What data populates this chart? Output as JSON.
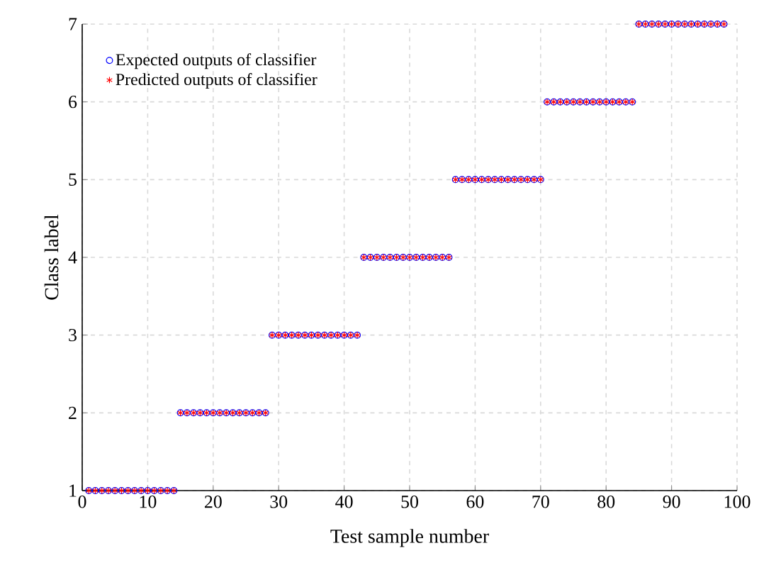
{
  "chart_data": {
    "type": "scatter",
    "xlabel": "Test sample number",
    "ylabel": "Class label",
    "x": [
      1,
      2,
      3,
      4,
      5,
      6,
      7,
      8,
      9,
      10,
      11,
      12,
      13,
      14,
      15,
      16,
      17,
      18,
      19,
      20,
      21,
      22,
      23,
      24,
      25,
      26,
      27,
      28,
      29,
      30,
      31,
      32,
      33,
      34,
      35,
      36,
      37,
      38,
      39,
      40,
      41,
      42,
      43,
      44,
      45,
      46,
      47,
      48,
      49,
      50,
      51,
      52,
      53,
      54,
      55,
      56,
      57,
      58,
      59,
      60,
      61,
      62,
      63,
      64,
      65,
      66,
      67,
      68,
      69,
      70,
      71,
      72,
      73,
      74,
      75,
      76,
      77,
      78,
      79,
      80,
      81,
      82,
      83,
      84,
      85,
      86,
      87,
      88,
      89,
      90,
      91,
      92,
      93,
      94,
      95,
      96,
      97,
      98
    ],
    "series": [
      {
        "name": "Expected outputs of classifier",
        "color": "#0000ff",
        "marker": "circle",
        "values": [
          1,
          1,
          1,
          1,
          1,
          1,
          1,
          1,
          1,
          1,
          1,
          1,
          1,
          1,
          2,
          2,
          2,
          2,
          2,
          2,
          2,
          2,
          2,
          2,
          2,
          2,
          2,
          2,
          3,
          3,
          3,
          3,
          3,
          3,
          3,
          3,
          3,
          3,
          3,
          3,
          3,
          3,
          4,
          4,
          4,
          4,
          4,
          4,
          4,
          4,
          4,
          4,
          4,
          4,
          4,
          4,
          5,
          5,
          5,
          5,
          5,
          5,
          5,
          5,
          5,
          5,
          5,
          5,
          5,
          5,
          6,
          6,
          6,
          6,
          6,
          6,
          6,
          6,
          6,
          6,
          6,
          6,
          6,
          6,
          7,
          7,
          7,
          7,
          7,
          7,
          7,
          7,
          7,
          7,
          7,
          7,
          7,
          7
        ]
      },
      {
        "name": "Predicted outputs of classifier",
        "color": "#ff0000",
        "marker": "cross",
        "values": [
          1,
          1,
          1,
          1,
          1,
          1,
          1,
          1,
          1,
          1,
          1,
          1,
          1,
          1,
          2,
          2,
          2,
          2,
          2,
          2,
          2,
          2,
          2,
          2,
          2,
          2,
          2,
          2,
          3,
          3,
          3,
          3,
          3,
          3,
          3,
          3,
          3,
          3,
          3,
          3,
          3,
          3,
          4,
          4,
          4,
          4,
          4,
          4,
          4,
          4,
          4,
          4,
          4,
          4,
          4,
          4,
          5,
          5,
          5,
          5,
          5,
          5,
          5,
          5,
          5,
          5,
          5,
          5,
          5,
          5,
          6,
          6,
          6,
          6,
          6,
          6,
          6,
          6,
          6,
          6,
          6,
          6,
          6,
          6,
          7,
          7,
          7,
          7,
          7,
          7,
          7,
          7,
          7,
          7,
          7,
          7,
          7,
          7
        ]
      }
    ],
    "xlim": [
      0,
      100
    ],
    "xticks": [
      0,
      10,
      20,
      30,
      40,
      50,
      60,
      70,
      80,
      90,
      100
    ],
    "ylim": [
      1,
      7
    ],
    "yticks": [
      1,
      2,
      3,
      4,
      5,
      6,
      7
    ],
    "grid": true,
    "legend": "top left"
  }
}
